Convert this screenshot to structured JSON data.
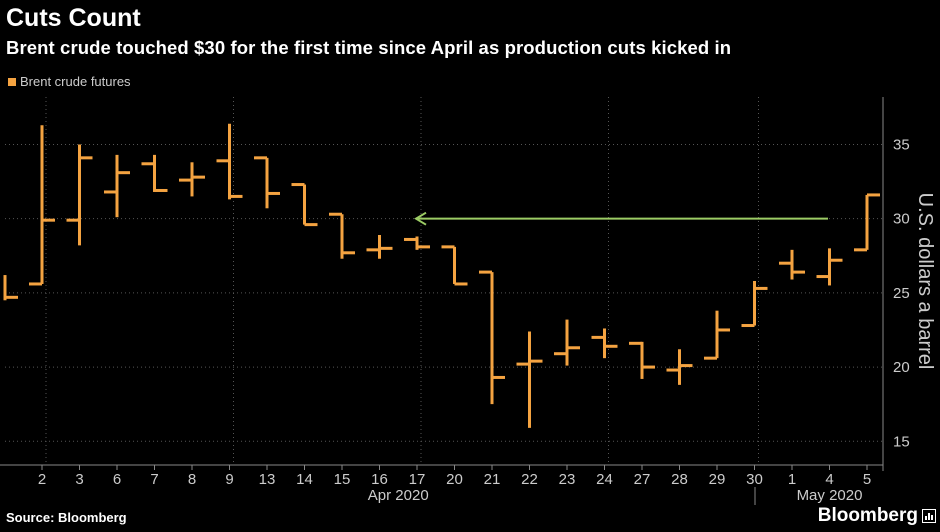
{
  "header": {
    "title": "Cuts Count",
    "subtitle": "Brent crude touched $30 for the first time since April as production cuts kicked in"
  },
  "legend": {
    "label": "Brent crude futures",
    "color": "#f4a341"
  },
  "footer": {
    "source": "Source: Bloomberg",
    "brand": "Bloomberg",
    "brand_icon": "bloomberg-terminal-icon"
  },
  "colors": {
    "background": "#000000",
    "bars": "#f4a341",
    "arrow": "#9ccc65",
    "grid": "#555555",
    "axis_text": "#cccccc"
  },
  "chart_data": {
    "type": "ohlc",
    "series_name": "Brent crude futures",
    "x_tick_labels": [
      "2",
      "3",
      "6",
      "7",
      "8",
      "9",
      "13",
      "14",
      "15",
      "16",
      "17",
      "20",
      "21",
      "22",
      "23",
      "24",
      "27",
      "28",
      "29",
      "30",
      "1",
      "4",
      "5"
    ],
    "month_labels": [
      {
        "label": "Apr 2020",
        "first": 0,
        "last": 19
      },
      {
        "label": "May 2020",
        "first": 20,
        "last": 22
      }
    ],
    "first_bar_partial": {
      "high": 26.2,
      "low": 24.5,
      "open": 26.2,
      "close": 24.7
    },
    "bars": [
      {
        "date": "2020-04-02",
        "open": 25.6,
        "high": 36.3,
        "low": 25.6,
        "close": 29.9
      },
      {
        "date": "2020-04-03",
        "open": 29.9,
        "high": 35.0,
        "low": 28.2,
        "close": 34.1
      },
      {
        "date": "2020-04-06",
        "open": 31.8,
        "high": 34.3,
        "low": 30.1,
        "close": 33.1
      },
      {
        "date": "2020-04-07",
        "open": 33.7,
        "high": 34.3,
        "low": 31.8,
        "close": 31.9
      },
      {
        "date": "2020-04-08",
        "open": 32.6,
        "high": 33.8,
        "low": 31.5,
        "close": 32.8
      },
      {
        "date": "2020-04-09",
        "open": 33.9,
        "high": 36.4,
        "low": 31.3,
        "close": 31.5
      },
      {
        "date": "2020-04-13",
        "open": 34.1,
        "high": 34.1,
        "low": 30.7,
        "close": 31.7
      },
      {
        "date": "2020-04-14",
        "open": 32.3,
        "high": 32.3,
        "low": 29.6,
        "close": 29.6
      },
      {
        "date": "2020-04-15",
        "open": 30.3,
        "high": 30.3,
        "low": 27.3,
        "close": 27.7
      },
      {
        "date": "2020-04-16",
        "open": 27.9,
        "high": 28.9,
        "low": 27.3,
        "close": 28.0
      },
      {
        "date": "2020-04-17",
        "open": 28.6,
        "high": 28.8,
        "low": 27.9,
        "close": 28.1
      },
      {
        "date": "2020-04-20",
        "open": 28.1,
        "high": 28.1,
        "low": 25.6,
        "close": 25.6
      },
      {
        "date": "2020-04-21",
        "open": 26.4,
        "high": 26.4,
        "low": 17.5,
        "close": 19.3
      },
      {
        "date": "2020-04-22",
        "open": 20.2,
        "high": 22.4,
        "low": 15.9,
        "close": 20.4
      },
      {
        "date": "2020-04-23",
        "open": 20.9,
        "high": 23.2,
        "low": 20.1,
        "close": 21.3
      },
      {
        "date": "2020-04-24",
        "open": 22.0,
        "high": 22.6,
        "low": 20.6,
        "close": 21.4
      },
      {
        "date": "2020-04-27",
        "open": 21.6,
        "high": 21.7,
        "low": 19.2,
        "close": 20.0
      },
      {
        "date": "2020-04-28",
        "open": 19.8,
        "high": 21.2,
        "low": 18.8,
        "close": 20.1
      },
      {
        "date": "2020-04-29",
        "open": 20.6,
        "high": 23.8,
        "low": 20.6,
        "close": 22.5
      },
      {
        "date": "2020-04-30",
        "open": 22.8,
        "high": 25.8,
        "low": 22.8,
        "close": 25.3
      },
      {
        "date": "2020-05-01",
        "open": 27.0,
        "high": 27.9,
        "low": 25.9,
        "close": 26.4
      },
      {
        "date": "2020-05-04",
        "open": 26.1,
        "high": 28.0,
        "low": 25.5,
        "close": 27.2
      },
      {
        "date": "2020-05-05",
        "open": 27.9,
        "high": 31.6,
        "low": 27.9,
        "close": 31.6
      }
    ],
    "y_axis": {
      "label": "U.S. dollars a barrel",
      "ticks": [
        15,
        20,
        25,
        30,
        35
      ],
      "range": [
        13.4,
        38.2
      ],
      "position": "right"
    },
    "annotation": {
      "type": "arrow",
      "y": 30,
      "from_index": 22,
      "to_index": 10,
      "direction": "left"
    },
    "grid": true
  }
}
